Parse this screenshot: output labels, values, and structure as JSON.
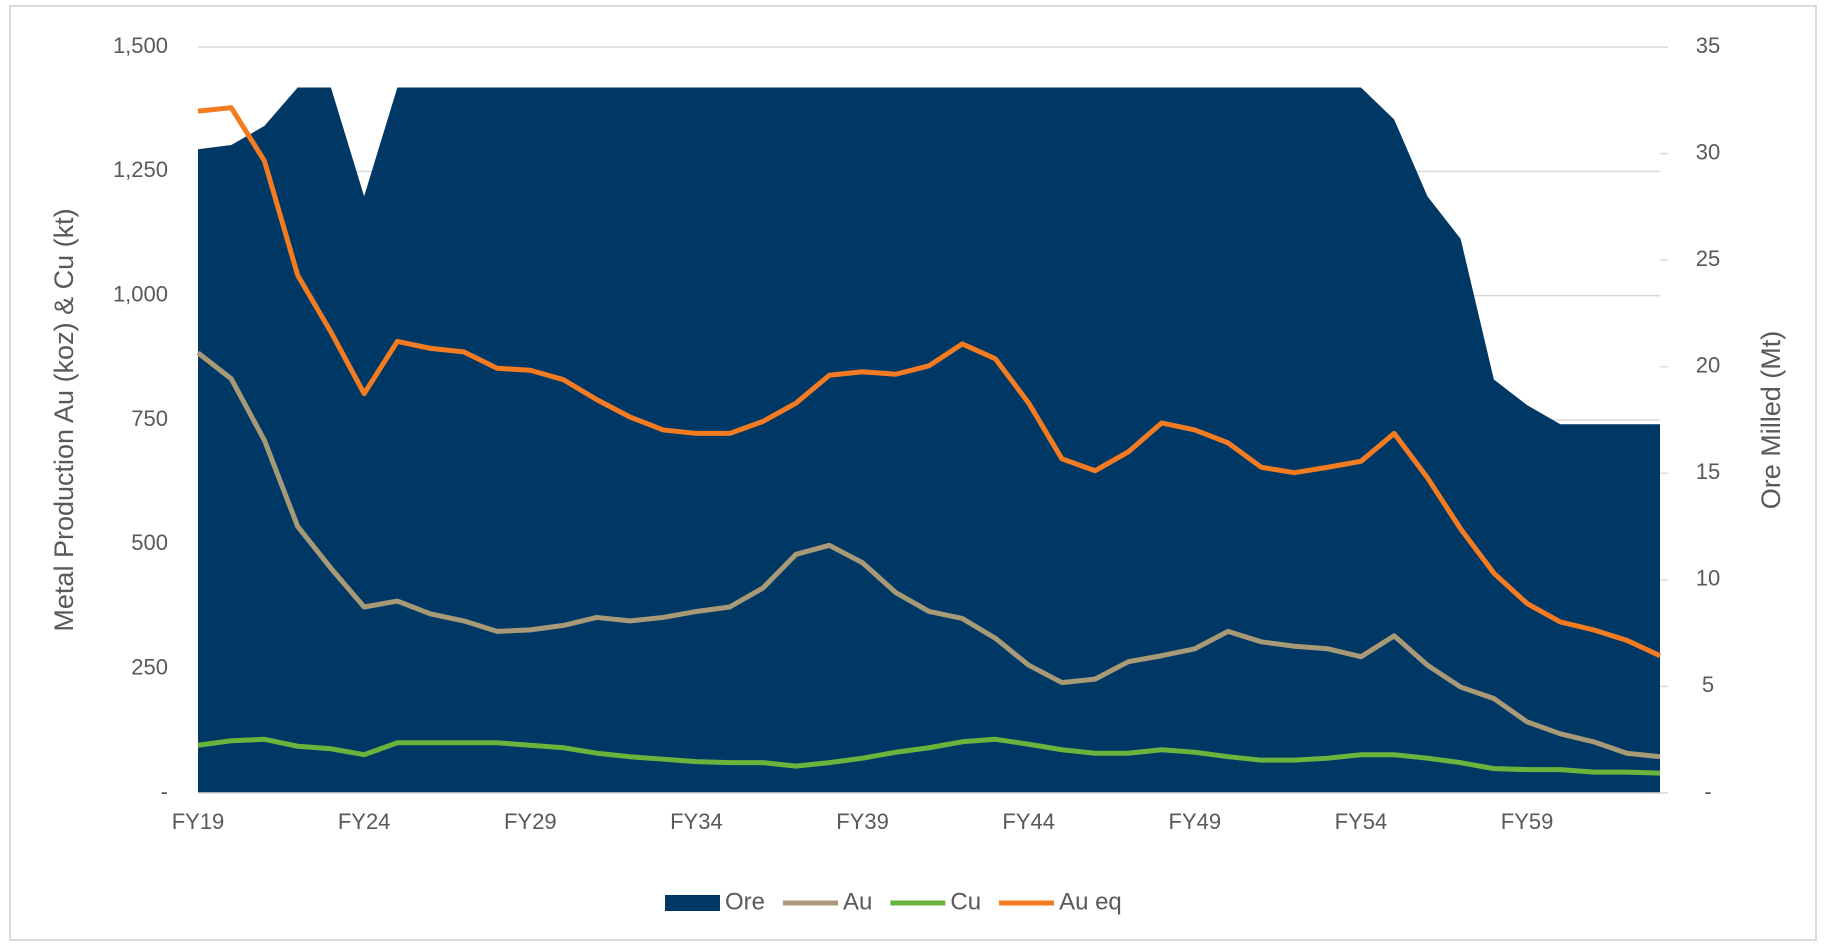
{
  "chart_data": {
    "type": "combo",
    "y_label": "Metal Production Au (koz) & Cu (kt)",
    "y2_label": "Ore Milled (Mt)",
    "categories": [
      "FY19",
      null,
      null,
      null,
      null,
      "FY24",
      null,
      null,
      null,
      null,
      "FY29",
      null,
      null,
      null,
      null,
      "FY34",
      null,
      null,
      null,
      null,
      "FY39",
      null,
      null,
      null,
      null,
      "FY44",
      null,
      null,
      null,
      null,
      "FY49",
      null,
      null,
      null,
      null,
      "FY54",
      null,
      null,
      null,
      null,
      "FY59",
      null,
      null,
      null,
      null
    ],
    "ylim": [
      0,
      1500
    ],
    "yticks": [
      {
        "value": 0,
        "label": "-"
      },
      250,
      500,
      750,
      {
        "value": 1000,
        "label": "1,000"
      },
      {
        "value": 1250,
        "label": "1,250"
      },
      {
        "value": 1500,
        "label": "1,500"
      }
    ],
    "y2lim": [
      0,
      35
    ],
    "y2ticks": [
      {
        "value": 0,
        "label": "-"
      },
      5,
      10,
      15,
      20,
      25,
      30,
      35
    ],
    "grid": true,
    "legend": "bottom",
    "series": [
      {
        "name": "Ore",
        "type": "area",
        "axis": "y2",
        "color": "#003865",
        "values": [
          30.2,
          30.4,
          31.3,
          33.1,
          33.1,
          28.0,
          33.1,
          33.1,
          33.1,
          33.1,
          33.1,
          33.1,
          33.1,
          33.1,
          33.1,
          33.1,
          33.1,
          33.1,
          33.1,
          33.1,
          33.1,
          33.1,
          33.1,
          33.1,
          33.1,
          33.1,
          33.1,
          33.1,
          33.1,
          33.1,
          33.1,
          33.1,
          33.1,
          33.1,
          33.1,
          33.1,
          31.6,
          28.0,
          26.0,
          19.4,
          18.2,
          17.3,
          17.3,
          17.3,
          17.3
        ]
      },
      {
        "name": "Au",
        "type": "line",
        "color": "#a89a76",
        "values": [
          885,
          833,
          709,
          536,
          452,
          374,
          386,
          360,
          346,
          325,
          328,
          337,
          353,
          346,
          353,
          365,
          374,
          412,
          480,
          498,
          463,
          403,
          365,
          351,
          311,
          257,
          222,
          229,
          264,
          276,
          290,
          325,
          304,
          295,
          290,
          274,
          316,
          257,
          213,
          190,
          143,
          119,
          103,
          80,
          73
        ]
      },
      {
        "name": "Cu",
        "type": "line",
        "color": "#6ab43e",
        "values": [
          96,
          105,
          108,
          94,
          89,
          77,
          101,
          101,
          101,
          101,
          96,
          91,
          80,
          73,
          68,
          63,
          61,
          61,
          54,
          61,
          70,
          82,
          91,
          103,
          108,
          98,
          87,
          80,
          80,
          87,
          82,
          73,
          66,
          66,
          70,
          77,
          77,
          70,
          61,
          49,
          47,
          47,
          42,
          42,
          40
        ]
      },
      {
        "name": "Au eq",
        "type": "line",
        "color": "#f47b20",
        "values": [
          1371,
          1378,
          1271,
          1041,
          927,
          803,
          908,
          894,
          887,
          854,
          850,
          831,
          791,
          756,
          730,
          723,
          723,
          747,
          784,
          840,
          847,
          842,
          859,
          903,
          873,
          784,
          672,
          648,
          686,
          744,
          730,
          704,
          655,
          644,
          655,
          667,
          723,
          634,
          531,
          442,
          381,
          344,
          328,
          307,
          276
        ]
      }
    ]
  }
}
